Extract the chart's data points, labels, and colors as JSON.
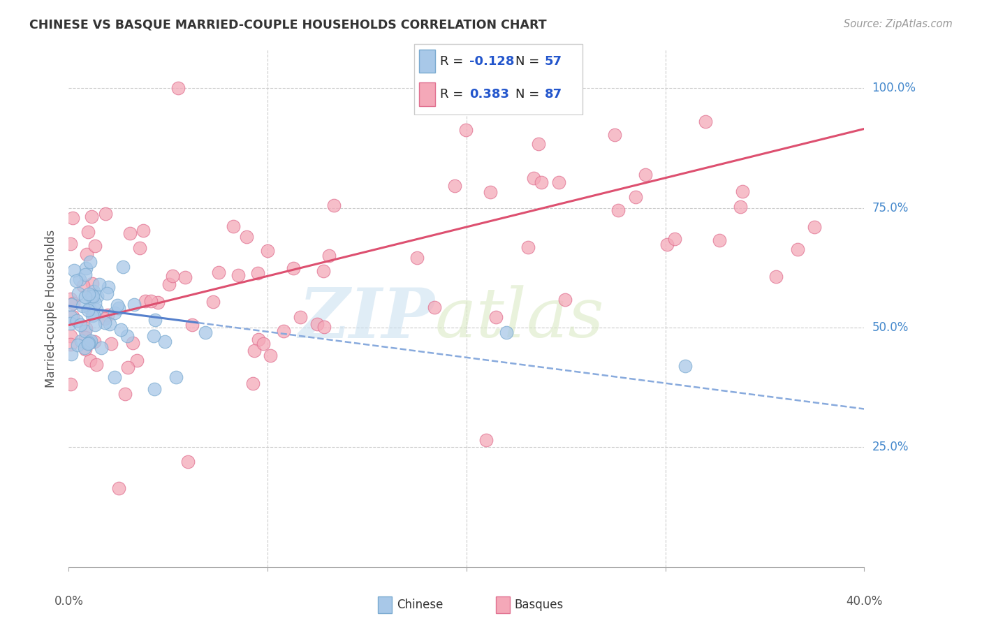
{
  "title": "CHINESE VS BASQUE MARRIED-COUPLE HOUSEHOLDS CORRELATION CHART",
  "source": "Source: ZipAtlas.com",
  "ylabel": "Married-couple Households",
  "xmin": 0.0,
  "xmax": 0.4,
  "ymin": 0.0,
  "ymax": 1.08,
  "yticks": [
    0.25,
    0.5,
    0.75,
    1.0
  ],
  "ytick_labels": [
    "25.0%",
    "50.0%",
    "75.0%",
    "100.0%"
  ],
  "xtick_left_label": "0.0%",
  "xtick_right_label": "40.0%",
  "chinese_color": "#a8c8e8",
  "basque_color": "#f4a8b8",
  "chinese_edge": "#7aaad0",
  "basque_edge": "#e07090",
  "trend_chinese_solid_color": "#5580cc",
  "trend_chinese_dash_color": "#88aadd",
  "trend_basque_color": "#dd5070",
  "legend_R_chinese": "-0.128",
  "legend_N_chinese": "57",
  "legend_R_basque": "0.383",
  "legend_N_basque": "87",
  "watermark_zip": "ZIP",
  "watermark_atlas": "atlas",
  "chinese_R": -0.128,
  "basque_R": 0.383,
  "chinese_N": 57,
  "basque_N": 87,
  "trend_ch_x0": 0.0,
  "trend_ch_y0": 0.545,
  "trend_ch_x1": 0.4,
  "trend_ch_y1": 0.33,
  "trend_ch_solid_end": 0.065,
  "trend_ba_x0": 0.0,
  "trend_ba_y0": 0.505,
  "trend_ba_x1": 0.4,
  "trend_ba_y1": 0.915
}
